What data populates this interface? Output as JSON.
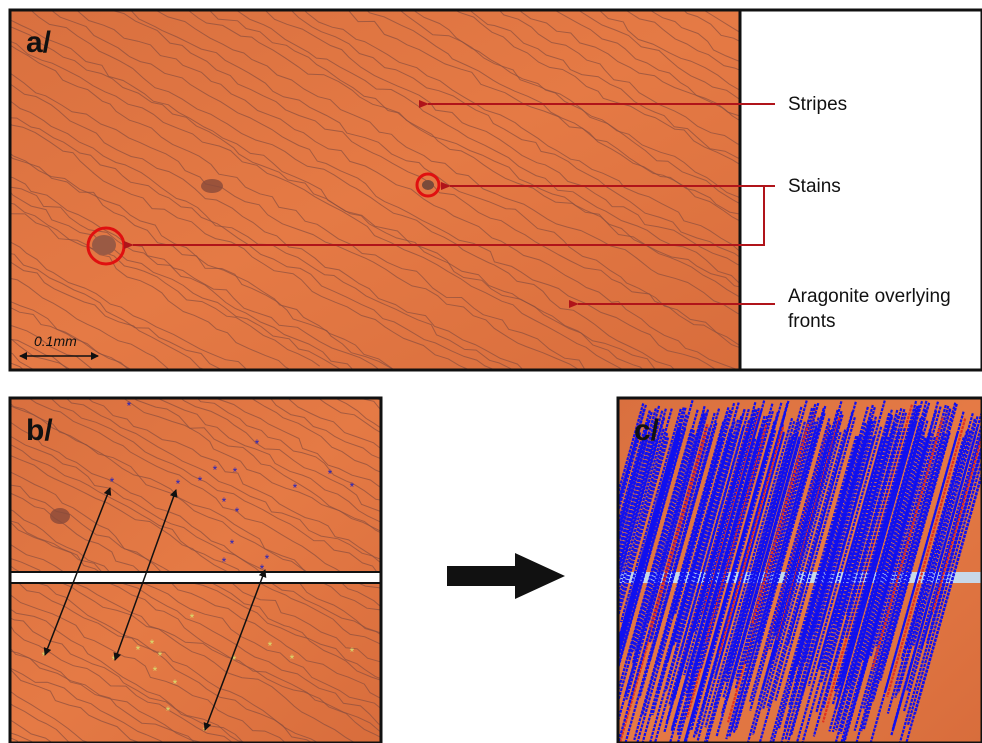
{
  "panels": {
    "a": {
      "label": "a/",
      "scale": "0.1mm",
      "annotations": {
        "stripes": "Stripes",
        "stains": "Stains",
        "fronts": [
          "Aragonite overlying",
          "fronts"
        ]
      }
    },
    "b": {
      "label": "b/"
    },
    "c": {
      "label": "c/"
    }
  }
}
